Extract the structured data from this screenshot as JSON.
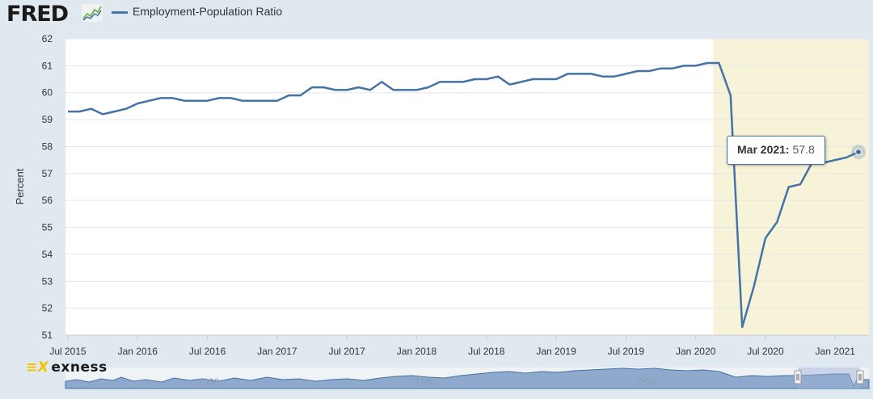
{
  "header": {
    "logo_text": "FRED",
    "legend_label": "Employment-Population Ratio",
    "series_color": "#4572a7"
  },
  "chart_data": {
    "type": "line",
    "title": "Employment-Population Ratio",
    "xlabel": "",
    "ylabel": "Percent",
    "ylim": [
      51,
      62
    ],
    "yticks": [
      51,
      52,
      53,
      54,
      55,
      56,
      57,
      58,
      59,
      60,
      61,
      62
    ],
    "xticks": [
      {
        "label": "Jul 2015",
        "idx": 0
      },
      {
        "label": "Jan 2016",
        "idx": 6
      },
      {
        "label": "Jul 2016",
        "idx": 12
      },
      {
        "label": "Jan 2017",
        "idx": 18
      },
      {
        "label": "Jul 2017",
        "idx": 24
      },
      {
        "label": "Jan 2018",
        "idx": 30
      },
      {
        "label": "Jul 2018",
        "idx": 36
      },
      {
        "label": "Jan 2019",
        "idx": 42
      },
      {
        "label": "Jul 2019",
        "idx": 48
      },
      {
        "label": "Jan 2020",
        "idx": 54
      },
      {
        "label": "Jul 2020",
        "idx": 60
      },
      {
        "label": "Jan 2021",
        "idx": 66
      }
    ],
    "recession": {
      "start_idx": 55.5,
      "end_idx": 68.1
    },
    "series": [
      {
        "name": "Employment-Population Ratio",
        "color": "#4572a7",
        "start": "Jul 2015",
        "values": [
          59.3,
          59.3,
          59.4,
          59.2,
          59.3,
          59.4,
          59.6,
          59.7,
          59.8,
          59.8,
          59.7,
          59.7,
          59.7,
          59.8,
          59.8,
          59.7,
          59.7,
          59.7,
          59.7,
          59.9,
          59.9,
          60.2,
          60.2,
          60.1,
          60.1,
          60.2,
          60.1,
          60.4,
          60.1,
          60.1,
          60.1,
          60.2,
          60.4,
          60.4,
          60.4,
          60.5,
          60.5,
          60.6,
          60.3,
          60.4,
          60.5,
          60.5,
          60.5,
          60.7,
          60.7,
          60.7,
          60.6,
          60.6,
          60.7,
          60.8,
          60.8,
          60.9,
          60.9,
          61.0,
          61.0,
          61.1,
          61.1,
          59.9,
          51.3,
          52.8,
          54.6,
          55.2,
          56.5,
          56.6,
          57.4,
          57.4,
          57.5,
          57.6,
          57.8
        ]
      }
    ],
    "tooltip": {
      "date": "Mar 2021:",
      "value": "57.8",
      "idx": 68
    },
    "navigator": {
      "labels": [
        "1960",
        "1980",
        "2000"
      ]
    }
  },
  "watermark": {
    "text": "exness",
    "mark": "≡X"
  }
}
